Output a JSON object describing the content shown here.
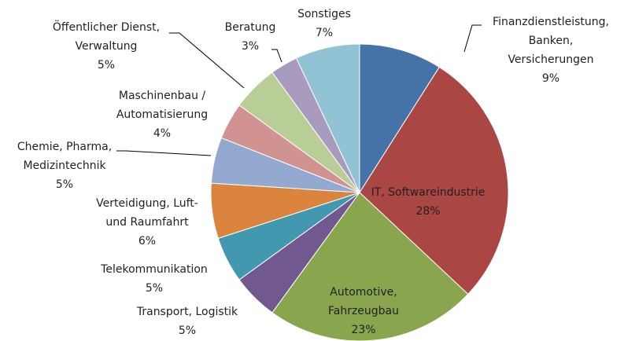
{
  "chart_data": {
    "type": "pie",
    "categories": [
      "Finanzdienstleistung,\nBanken,\nVersicherungen",
      "IT, Softwareindustrie",
      "Automotive,\nFahrzeugbau",
      "Transport, Logistik",
      "Telekommunikation",
      "Verteidigung, Luft-\nund Raumfahrt",
      "Chemie, Pharma,\nMedizintechnik",
      "Maschinenbau /\nAutomatisierung",
      "Öffentlicher Dienst,\nVerwaltung",
      "Beratung",
      "Sonstiges"
    ],
    "values": [
      9,
      28,
      23,
      5,
      5,
      6,
      5,
      4,
      5,
      3,
      7
    ],
    "value_labels": [
      "9%",
      "28%",
      "23%",
      "5%",
      "5%",
      "6%",
      "5%",
      "4%",
      "5%",
      "3%",
      "7%"
    ],
    "colors": [
      "#4572a7",
      "#aa4643",
      "#89a54e",
      "#71588f",
      "#4198af",
      "#db843d",
      "#93a9cf",
      "#d19392",
      "#b9cd96",
      "#a99bbd",
      "#92c3d4"
    ]
  }
}
